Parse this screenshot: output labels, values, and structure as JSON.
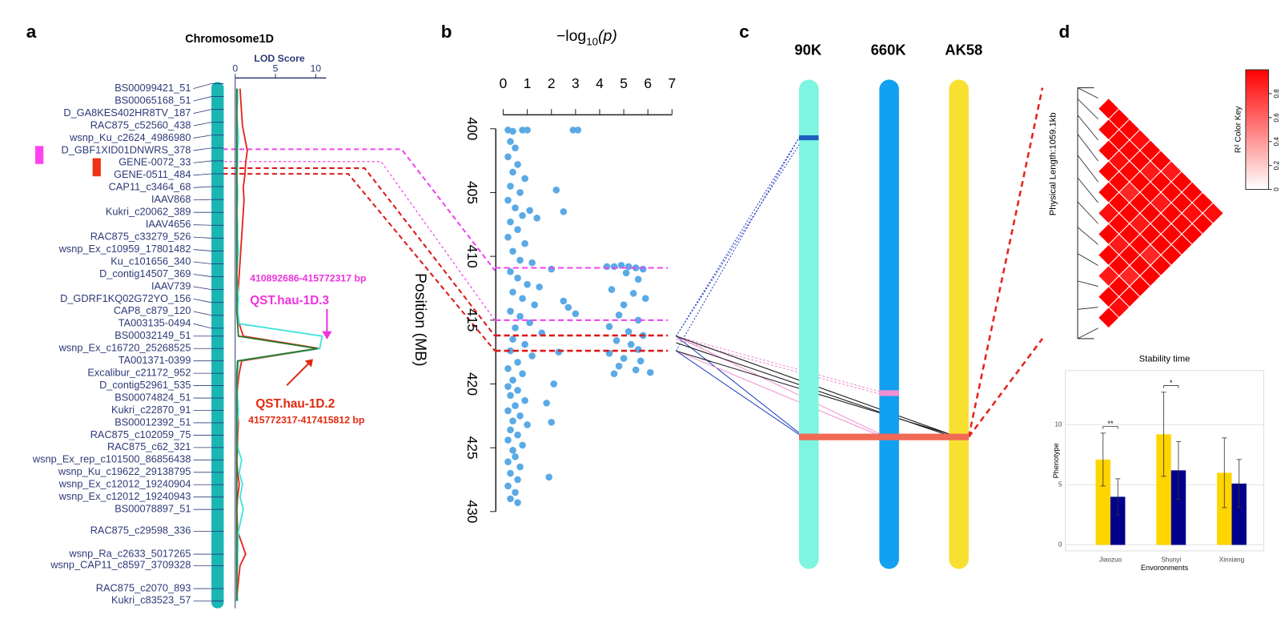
{
  "panel_labels": [
    "a",
    "b",
    "c",
    "d"
  ],
  "chart_data": [
    {
      "type": "genetic-map",
      "title": "Chromosome1D",
      "xlabel": "LOD Score",
      "xlim": [
        0,
        11.3
      ],
      "xticks": [
        0,
        5,
        10
      ],
      "markers": [
        "BS00099421_51",
        "BS00065168_51",
        "D_GA8KES402HR8TV_187",
        "RAC875_c52560_438",
        "wsnp_Ku_c2624_4986980",
        "D_GBF1XID01DNWRS_378",
        "GENE-0072_33",
        "GENE-0511_484",
        "CAP11_c3464_68",
        "IAAV868",
        "Kukri_c20062_389",
        "IAAV4656",
        "RAC875_c33279_526",
        "wsnp_Ex_c10959_17801482",
        "Ku_c101656_340",
        "D_contig14507_369",
        "IAAV739",
        "D_GDRF1KQ02G72YO_156",
        "CAP8_c879_120",
        "TA003135-0494",
        "BS00032149_51",
        "wsnp_Ex_c16720_25268525",
        "TA001371-0399",
        "Excalibur_c21172_952",
        "D_contig52961_535",
        "BS00074824_51",
        "Kukri_c22870_91",
        "BS00012392_51",
        "RAC875_c102059_75",
        "RAC875_c62_321",
        "wsnp_Ex_rep_c101500_86856438",
        "wsnp_Ku_c19622_29138795",
        "wsnp_Ex_c12012_19240904",
        "wsnp_Ex_c12012_19240943",
        "BS00078897_51",
        "RAC875_c29598_336",
        "wsnp_Ra_c2633_5017265",
        "wsnp_CAP11_c8597_3709328",
        "RAC875_c2070_893",
        "Kukri_c83523_57"
      ],
      "series": [
        {
          "color": "#e8231e",
          "values": [
            0.6,
            0.7,
            0.8,
            0.9,
            1.2,
            1.5,
            1.3,
            1.2,
            1.0,
            1.1,
            1.0,
            0.9,
            0.8,
            0.7,
            0.6,
            0.5,
            0.4,
            0.3,
            0.3,
            0.5,
            1.0,
            10.5,
            0.8,
            0.5,
            0.3,
            0.2,
            0.3,
            0.4,
            0.3,
            0.3,
            0.2,
            0.3,
            0.5,
            0.3,
            0.2,
            0.3,
            1.3,
            0.6,
            0.3,
            0.2
          ]
        },
        {
          "color": "#3fe3dc",
          "values": [
            0.3,
            0.3,
            0.2,
            0.3,
            0.4,
            0.3,
            0.3,
            0.2,
            0.3,
            0.3,
            0.2,
            0.3,
            0.3,
            0.4,
            0.3,
            0.2,
            0.3,
            0.4,
            0.3,
            0.5,
            10.8,
            10.5,
            0.4,
            0.3,
            0.2,
            0.3,
            0.4,
            0.3,
            0.2,
            0.3,
            0.8,
            0.5,
            0.9,
            0.6,
            1.0,
            0.4,
            0.3,
            0.3,
            0.2,
            0.3
          ]
        },
        {
          "color": "#2a7a2a",
          "values": [
            0.2,
            0.2,
            0.2,
            0.2,
            0.2,
            0.2,
            0.2,
            0.2,
            0.2,
            0.2,
            0.2,
            0.2,
            0.2,
            0.2,
            0.2,
            0.2,
            0.2,
            0.2,
            0.2,
            0.3,
            0.4,
            10.2,
            0.3,
            0.2,
            0.2,
            0.2,
            0.2,
            0.2,
            0.2,
            0.2,
            0.2,
            0.2,
            0.2,
            0.2,
            0.2,
            0.2,
            0.2,
            0.2,
            0.2,
            0.2
          ]
        }
      ],
      "annotations": [
        {
          "text": "410892686-415772317 bp",
          "color": "#ee33dd"
        },
        {
          "text": "QST.hau-1D.3",
          "color": "#ee33dd"
        },
        {
          "text": "QST.hau-1D.2",
          "color": "#e02a10"
        },
        {
          "text": "415772317-417415812 bp",
          "color": "#e02a10"
        }
      ]
    },
    {
      "type": "scatter",
      "xlabel": {
        "main": "−log",
        "sub": "10",
        "tail": "(p)"
      },
      "ylabel": "Position (MB)",
      "xlim": [
        0,
        7
      ],
      "xticks": [
        0,
        1,
        2,
        3,
        4,
        5,
        6,
        7
      ],
      "ylim": [
        400,
        430
      ],
      "yticks": [
        400,
        405,
        410,
        415,
        420,
        425,
        430
      ],
      "color": "#5aaae6",
      "x": [
        0.2,
        0.4,
        0.8,
        1.0,
        0.3,
        0.5,
        0.2,
        0.6,
        0.4,
        0.9,
        0.3,
        0.7,
        0.2,
        0.5,
        1.1,
        0.8,
        0.3,
        1.4,
        0.6,
        0.2,
        0.9,
        0.4,
        0.7,
        1.2,
        0.3,
        0.6,
        1.0,
        1.5,
        0.4,
        0.8,
        1.3,
        0.3,
        0.7,
        1.1,
        0.5,
        1.6,
        0.4,
        0.9,
        0.3,
        1.2,
        0.6,
        0.2,
        0.8,
        0.4,
        0.2,
        0.6,
        0.3,
        0.9,
        0.5,
        0.2,
        0.7,
        0.4,
        1.0,
        0.3,
        0.6,
        0.2,
        0.8,
        0.4,
        0.5,
        0.2,
        0.7,
        0.3,
        0.6,
        0.2,
        0.5,
        0.3,
        0.6,
        2.9,
        3.1,
        2.2,
        2.5,
        2.0,
        2.5,
        2.7,
        3.0,
        2.3,
        2.1,
        1.8,
        2.0,
        1.9,
        4.3,
        4.6,
        4.9,
        5.2,
        5.5,
        5.8,
        5.1,
        5.6,
        4.5,
        5.4,
        5.9,
        5.0,
        4.8,
        5.6,
        4.4,
        5.2,
        5.8,
        4.7,
        5.3,
        5.6,
        4.4,
        5.0,
        5.7,
        4.8,
        5.5,
        6.1,
        4.6
      ],
      "y": [
        400.1,
        400.2,
        400.1,
        400.1,
        401,
        401.5,
        402.2,
        402.8,
        403.4,
        403.9,
        404.5,
        405,
        405.6,
        406.2,
        406.4,
        406.8,
        407.3,
        407,
        407.9,
        408.5,
        409,
        409.6,
        410.3,
        410.5,
        411.2,
        411.7,
        412.2,
        412.4,
        412.8,
        413.3,
        413.8,
        414.3,
        414.7,
        415.2,
        415.6,
        416,
        416.5,
        416.9,
        417.4,
        417.8,
        418.3,
        418.8,
        419.2,
        419.7,
        420.2,
        420.5,
        420.9,
        421.3,
        421.7,
        422.1,
        422.5,
        422.9,
        423.2,
        423.6,
        424,
        424.4,
        424.8,
        425.2,
        425.7,
        426.1,
        426.5,
        427,
        427.5,
        428,
        428.5,
        429,
        429.3,
        400.1,
        400.1,
        404.8,
        406.5,
        411,
        413.5,
        414,
        414.5,
        417.5,
        420,
        421.5,
        423,
        427.3,
        410.8,
        410.8,
        410.7,
        410.8,
        410.9,
        411,
        411.3,
        411.8,
        412.6,
        412.9,
        413.3,
        413.8,
        414.6,
        415,
        415.5,
        415.9,
        416.2,
        416.6,
        416.9,
        417.3,
        417.6,
        418,
        418.2,
        418.6,
        418.9,
        419.1,
        419.2
      ],
      "intervals": [
        {
          "color": "#ee44ee",
          "values": [
            410.9,
            415.0
          ]
        },
        {
          "color": "#dd1a1a",
          "values": [
            416.2,
            417.4
          ]
        }
      ]
    },
    {
      "type": "heatmap",
      "ylabel": "Physical Length:1059.1kb",
      "legend_title": "R² Color Key",
      "color_key_ticks": [
        0,
        0.2,
        0.4,
        0.6,
        0.8
      ],
      "color_key_lim": [
        0,
        1
      ],
      "color": "#ff0000",
      "values": [
        [
          1,
          1,
          1,
          0.95,
          1,
          1,
          0.9,
          1,
          1,
          1,
          0.95
        ],
        [
          1,
          1,
          1,
          1,
          0.9,
          1,
          1,
          1,
          0.95,
          1
        ],
        [
          1,
          0.95,
          1,
          1,
          1,
          0.9,
          1,
          1,
          1
        ],
        [
          1,
          1,
          0.85,
          1,
          1,
          1,
          1,
          1
        ],
        [
          1,
          1,
          1,
          0.9,
          1,
          1,
          1
        ],
        [
          0.95,
          1,
          1,
          1,
          0.85,
          1
        ],
        [
          1,
          0.9,
          1,
          1,
          1
        ],
        [
          1,
          1,
          0.85,
          1
        ],
        [
          0.9,
          1,
          1
        ],
        [
          1,
          0.95
        ],
        [
          1
        ]
      ]
    },
    {
      "type": "bar",
      "title": "Stability time",
      "xlabel": "Envoronments",
      "ylabel": "Phenotype",
      "categories": [
        "Jiaozuo",
        "Shunyi",
        "Xinxiang"
      ],
      "ylim": [
        -0.5,
        14.5
      ],
      "yticks": [
        0,
        5,
        10
      ],
      "grid": true,
      "series": [
        {
          "color": "#ffd500",
          "values": [
            7.1,
            9.2,
            6.0
          ],
          "errors": [
            2.2,
            3.5,
            2.9
          ]
        },
        {
          "color": "#00008b",
          "values": [
            4.0,
            6.2,
            5.1
          ],
          "errors": [
            1.5,
            2.4,
            2.0
          ]
        }
      ],
      "significance": [
        "**",
        "*",
        null
      ]
    }
  ],
  "diagram": {
    "chromosomes": [
      {
        "label": "90K",
        "color": "#7ef5e0"
      },
      {
        "label": "660K",
        "color": "#12a0f0"
      },
      {
        "label": "AK58",
        "color": "#f8e030"
      }
    ]
  }
}
